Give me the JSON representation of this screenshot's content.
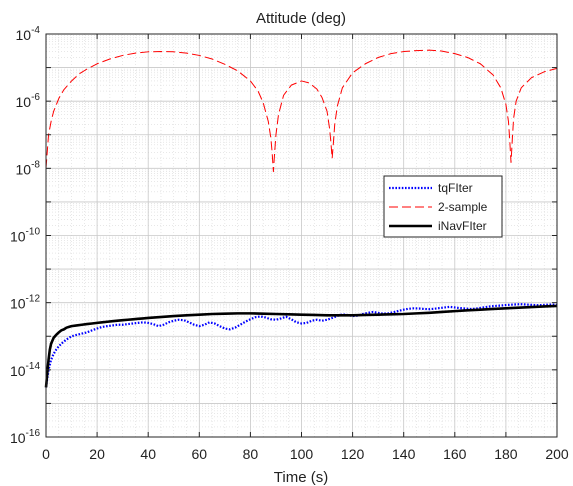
{
  "chart_data": {
    "type": "line",
    "title": "Attitude (deg)",
    "xlabel": "Time (s)",
    "ylabel": "",
    "xlim": [
      0,
      200
    ],
    "ylim": [
      1e-16,
      0.0001
    ],
    "yscale": "log",
    "grid": true,
    "minor_grid": true,
    "legend_position": "right",
    "x_ticks": [
      "0",
      "20",
      "40",
      "60",
      "80",
      "100",
      "120",
      "140",
      "160",
      "180",
      "200"
    ],
    "y_ticks": [
      {
        "base": "10",
        "exp": "-16"
      },
      {
        "base": "10",
        "exp": "-14"
      },
      {
        "base": "10",
        "exp": "-12"
      },
      {
        "base": "10",
        "exp": "-10"
      },
      {
        "base": "10",
        "exp": "-8"
      },
      {
        "base": "10",
        "exp": "-6"
      },
      {
        "base": "10",
        "exp": "-4"
      }
    ],
    "series": [
      {
        "name": "tqFIter",
        "color": "#0000ff",
        "style": "dotted",
        "x": [
          0,
          1,
          2,
          3,
          4,
          5,
          6,
          8,
          10,
          12,
          14,
          16,
          18,
          20,
          22,
          24,
          26,
          28,
          30,
          32,
          34,
          36,
          38,
          40,
          42,
          44,
          46,
          48,
          50,
          52,
          54,
          56,
          58,
          60,
          62,
          64,
          66,
          68,
          70,
          72,
          74,
          76,
          78,
          80,
          82,
          84,
          86,
          88,
          90,
          92,
          94,
          96,
          98,
          100,
          102,
          104,
          106,
          108,
          110,
          112,
          114,
          116,
          118,
          120,
          122,
          124,
          126,
          128,
          130,
          132,
          134,
          136,
          138,
          140,
          142,
          144,
          146,
          148,
          150,
          152,
          154,
          156,
          158,
          160,
          162,
          164,
          166,
          168,
          170,
          172,
          174,
          176,
          178,
          180,
          182,
          184,
          186,
          188,
          190,
          192,
          194,
          196,
          198,
          200
        ],
        "y": [
          3e-15,
          1e-14,
          2e-14,
          3e-14,
          4e-14,
          5e-14,
          6e-14,
          8e-14,
          1e-13,
          1.1e-13,
          1.2e-13,
          1.3e-13,
          1.5e-13,
          1.7e-13,
          1.9e-13,
          2e-13,
          2.1e-13,
          2.2e-13,
          2.2e-13,
          2.3e-13,
          2.4e-13,
          2.5e-13,
          2.6e-13,
          2.5e-13,
          2.3e-13,
          2e-13,
          2.2e-13,
          2.6e-13,
          2.9e-13,
          3.1e-13,
          3e-13,
          2.6e-13,
          2.2e-13,
          2e-13,
          2.2e-13,
          2.6e-13,
          2.4e-13,
          2e-13,
          1.7e-13,
          1.6e-13,
          1.8e-13,
          2.2e-13,
          2.7e-13,
          3.2e-13,
          3.7e-13,
          3.9e-13,
          3.6e-13,
          3.2e-13,
          3.1e-13,
          3.4e-13,
          3.8e-13,
          3.2e-13,
          2.6e-13,
          2.4e-13,
          2.5e-13,
          2.9e-13,
          3.1e-13,
          2.9e-13,
          3.1e-13,
          3.5e-13,
          4e-13,
          4.5e-13,
          4.3e-13,
          4e-13,
          4.1e-13,
          4.6e-13,
          5e-13,
          5.3e-13,
          5e-13,
          4.7e-13,
          4.8e-13,
          5.2e-13,
          5.7e-13,
          6.2e-13,
          6.6e-13,
          6.8e-13,
          6.7e-13,
          6.5e-13,
          6.4e-13,
          6.6e-13,
          6.9e-13,
          7.2e-13,
          7.5e-13,
          7.2e-13,
          6.9e-13,
          6.7e-13,
          6.5e-13,
          6.6e-13,
          7e-13,
          7.4e-13,
          7.8e-13,
          8e-13,
          8.2e-13,
          8.5e-13,
          8.7e-13,
          8.9e-13,
          9e-13,
          8.8e-13,
          8.6e-13,
          8.4e-13,
          8.5e-13,
          8.7e-13,
          8.8e-13,
          8.6e-13
        ]
      },
      {
        "name": "2-sample",
        "color": "#ff0000",
        "style": "dashed",
        "x": [
          0,
          1,
          2,
          3,
          5,
          7,
          10,
          13,
          16,
          20,
          25,
          30,
          35,
          40,
          45,
          50,
          55,
          60,
          65,
          70,
          75,
          80,
          83,
          85,
          87,
          88,
          88.5,
          89,
          89.5,
          90,
          91,
          93,
          96,
          100,
          103,
          106,
          108,
          110,
          111,
          111.5,
          112,
          112.5,
          113,
          114,
          116,
          120,
          125,
          130,
          135,
          140,
          145,
          150,
          155,
          160,
          165,
          170,
          175,
          178,
          180,
          181,
          181.5,
          182,
          182.5,
          183,
          184,
          186,
          190,
          195,
          200
        ],
        "y": [
          1e-08,
          1e-07,
          2.5e-07,
          5e-07,
          1.2e-06,
          2.2e-06,
          4e-06,
          6.5e-06,
          9e-06,
          1.3e-05,
          1.8e-05,
          2.3e-05,
          2.7e-05,
          2.95e-05,
          3e-05,
          2.95e-05,
          2.7e-05,
          2.3e-05,
          1.8e-05,
          1.25e-05,
          8e-06,
          4e-06,
          2e-06,
          9e-07,
          2.5e-07,
          8e-08,
          3e-08,
          8e-09,
          3e-08,
          1e-07,
          4e-07,
          1.5e-06,
          3e-06,
          4e-06,
          3.5e-06,
          2.3e-06,
          1.3e-06,
          5e-07,
          1.5e-07,
          6e-08,
          2e-08,
          6e-08,
          2e-07,
          7e-07,
          2.5e-06,
          7e-06,
          1.3e-05,
          2e-05,
          2.6e-05,
          3e-05,
          3.2e-05,
          3.3e-05,
          3.1e-05,
          2.6e-05,
          2e-05,
          1.3e-05,
          6e-06,
          2.5e-06,
          8e-07,
          2.5e-07,
          7e-08,
          1.5e-08,
          7e-08,
          3e-07,
          1e-06,
          2.5e-06,
          5e-06,
          7.5e-06,
          9.5e-06
        ]
      },
      {
        "name": "iNavFIter",
        "color": "#000000",
        "style": "solid",
        "x": [
          0,
          0.5,
          1,
          1.5,
          2,
          3,
          4,
          5,
          6,
          7,
          8,
          9,
          10,
          12,
          14,
          16,
          18,
          20,
          22,
          24,
          26,
          28,
          30,
          32,
          34,
          36,
          38,
          40,
          42,
          44,
          46,
          48,
          50,
          55,
          60,
          65,
          70,
          75,
          80,
          85,
          90,
          95,
          100,
          105,
          110,
          115,
          120,
          125,
          130,
          135,
          140,
          145,
          150,
          155,
          160,
          165,
          170,
          175,
          180,
          185,
          190,
          195,
          200
        ],
        "y": [
          3e-15,
          8e-15,
          2e-14,
          4e-14,
          6e-14,
          9e-14,
          1.1e-13,
          1.3e-13,
          1.5e-13,
          1.6e-13,
          1.8e-13,
          1.9e-13,
          2e-13,
          2.1e-13,
          2.2e-13,
          2.3e-13,
          2.4e-13,
          2.5e-13,
          2.6e-13,
          2.7e-13,
          2.8e-13,
          2.9e-13,
          3e-13,
          3.1e-13,
          3.2e-13,
          3.3e-13,
          3.4e-13,
          3.5e-13,
          3.6e-13,
          3.7e-13,
          3.8e-13,
          3.9e-13,
          4e-13,
          4.2e-13,
          4.4e-13,
          4.6e-13,
          4.7e-13,
          4.8e-13,
          4.8e-13,
          4.7e-13,
          4.6e-13,
          4.5e-13,
          4.4e-13,
          4.3e-13,
          4.2e-13,
          4.2e-13,
          4.2e-13,
          4.3e-13,
          4.4e-13,
          4.5e-13,
          4.6e-13,
          4.8e-13,
          5e-13,
          5.3e-13,
          5.6e-13,
          5.9e-13,
          6.2e-13,
          6.5e-13,
          6.8e-13,
          7.1e-13,
          7.4e-13,
          7.7e-13,
          8e-13
        ]
      }
    ]
  }
}
